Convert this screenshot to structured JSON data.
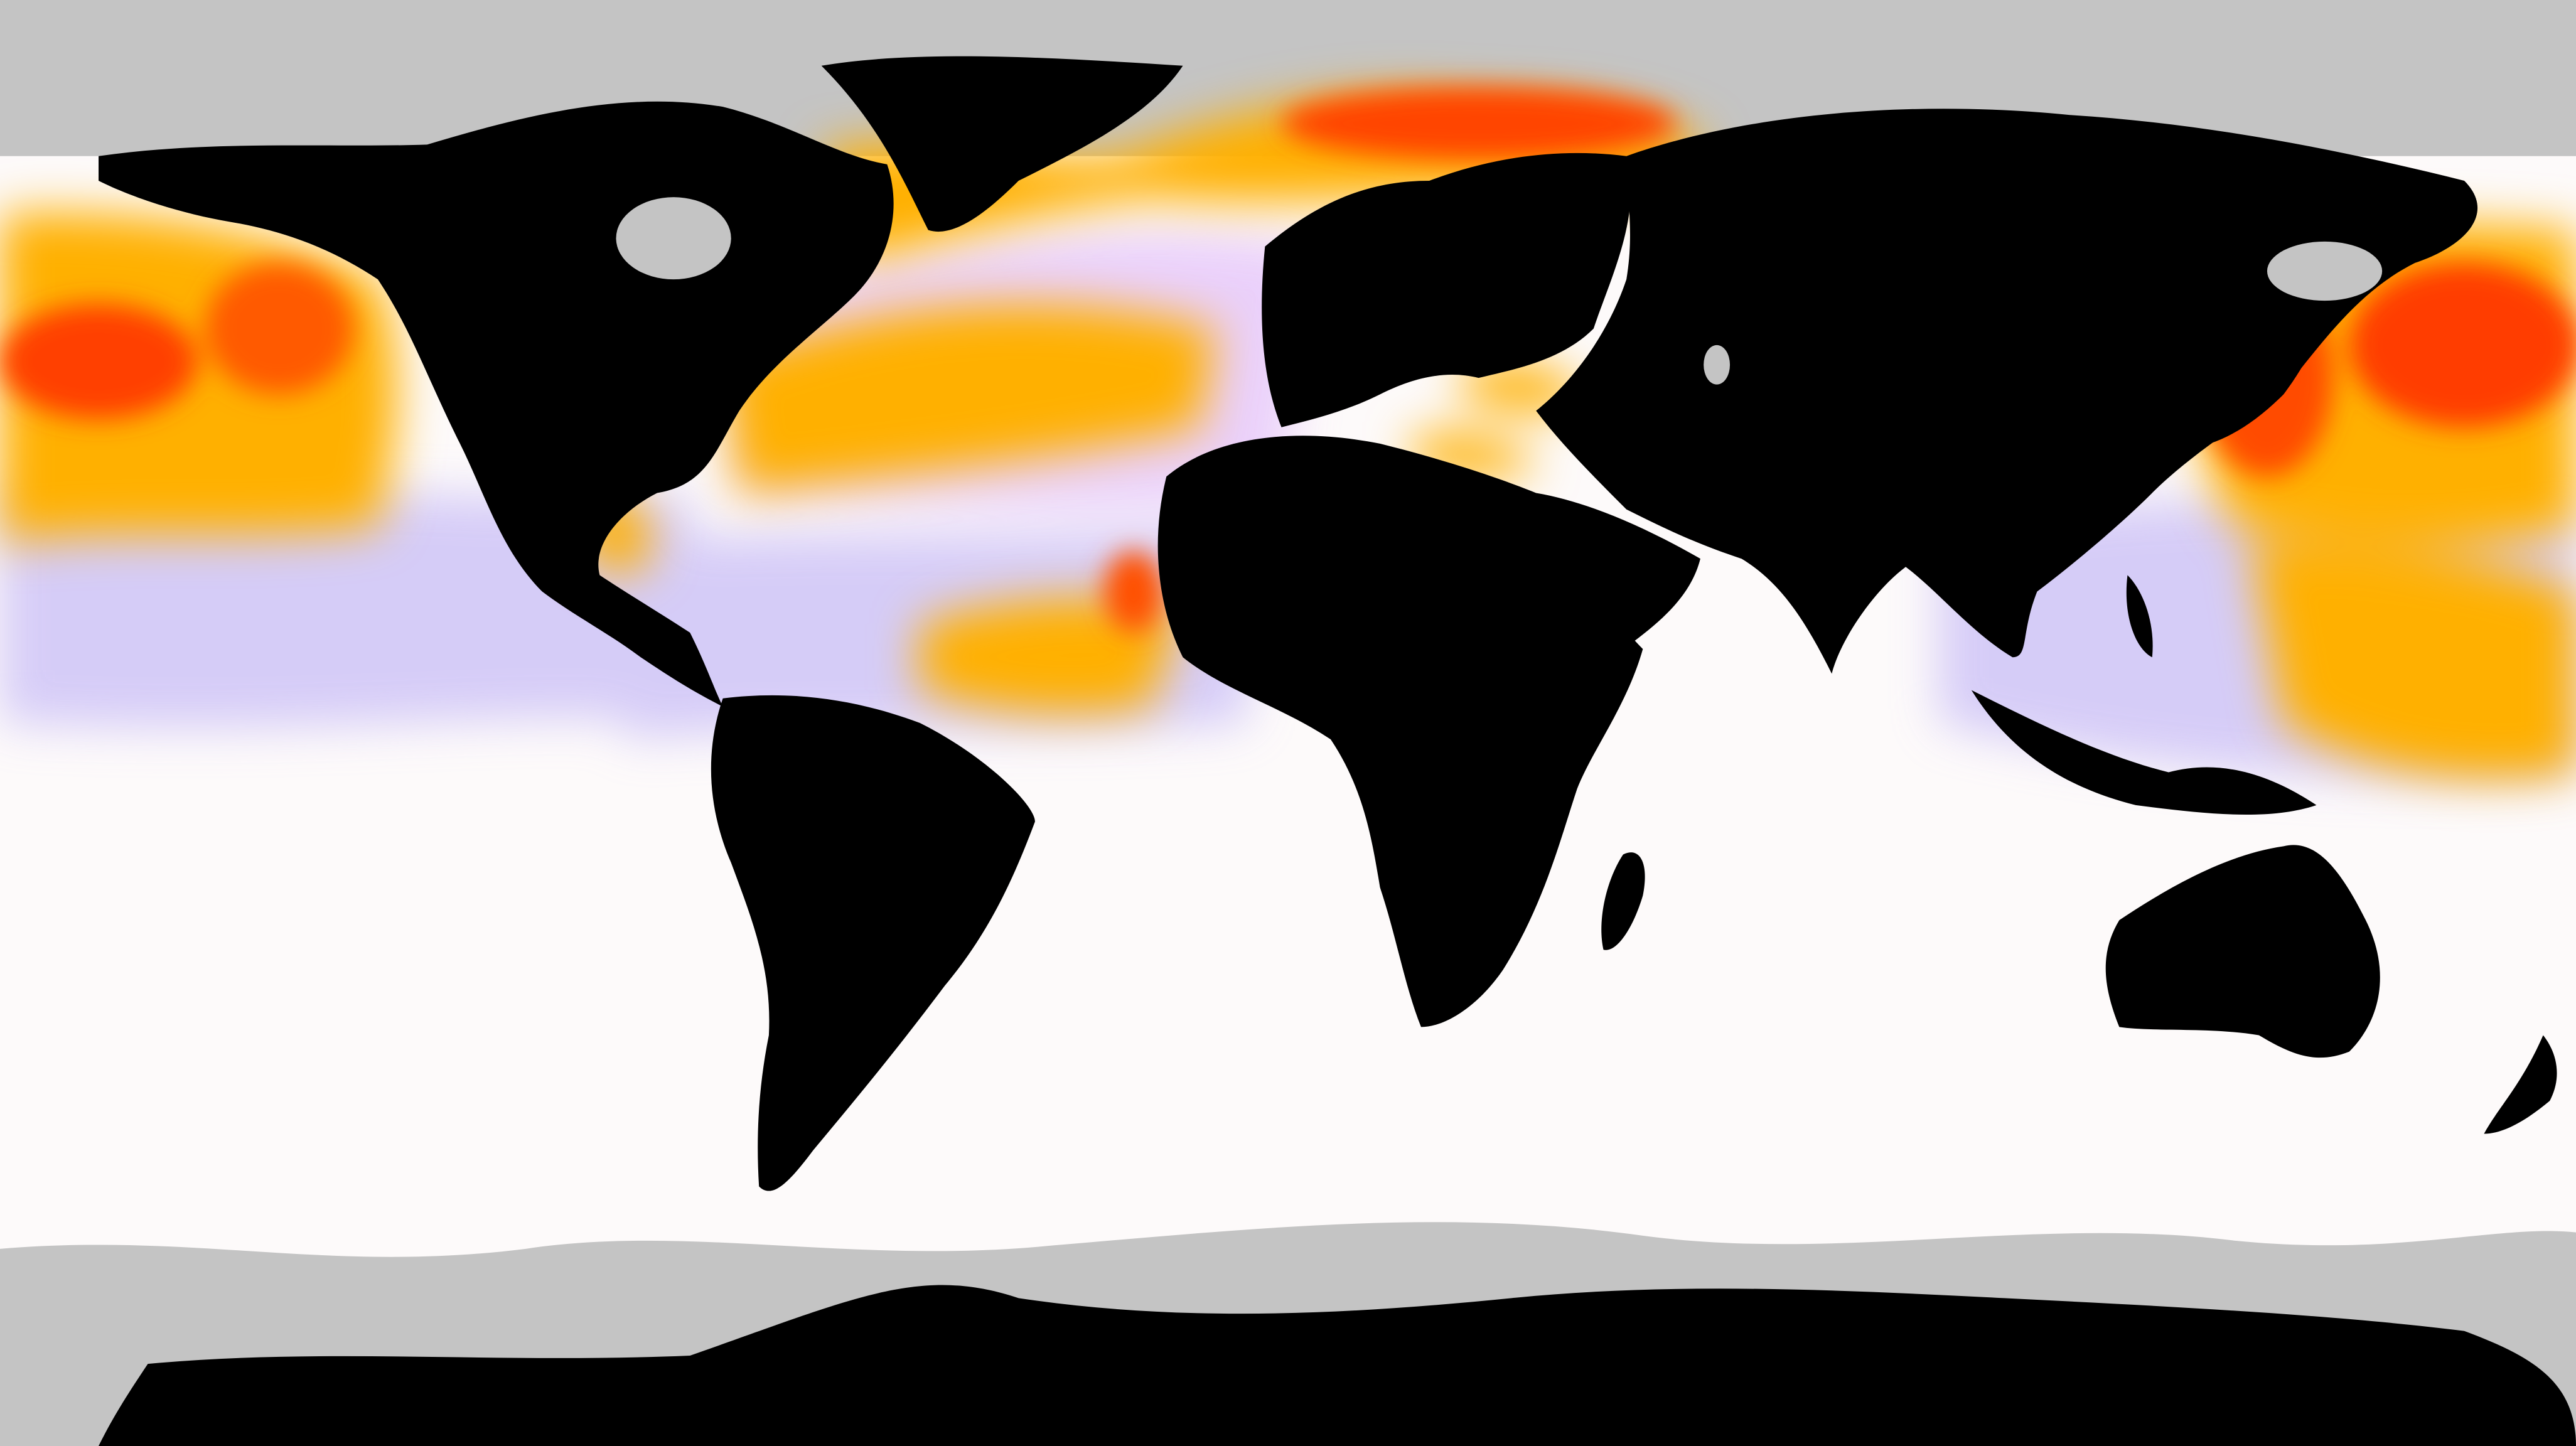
{
  "map": {
    "projection": "equirectangular",
    "palette": {
      "land": "#000000",
      "ice": "#c4c4c4",
      "low": "#fdfafa",
      "mid_low": "#b3aaf2",
      "mid": "#ffd0ff",
      "warm": "#ffb400",
      "hot": "#ff3c00"
    },
    "layers": [
      "sea-surface-anomaly",
      "continents",
      "sea-ice"
    ]
  }
}
